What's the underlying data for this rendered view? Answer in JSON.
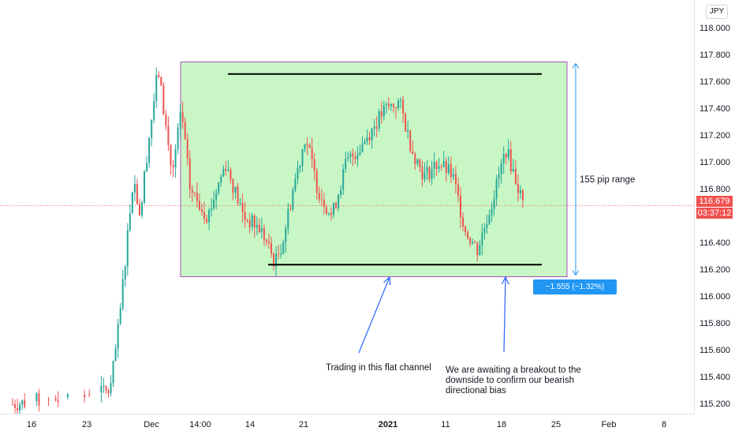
{
  "symbol": {
    "currency": "JPY"
  },
  "colors": {
    "up": "#26a69a",
    "down": "#ef5350",
    "channel_fill": "#c8f7c5",
    "channel_border": "#9c27b0",
    "line": "#000000",
    "arrow": "#2962ff",
    "measure": "#2196f3"
  },
  "price_axis": {
    "labels": [
      "118.000",
      "117.800",
      "117.600",
      "117.400",
      "117.200",
      "117.000",
      "116.800",
      "116.600",
      "116.400",
      "116.200",
      "116.000",
      "115.800",
      "115.600",
      "115.400",
      "115.200"
    ],
    "last_price": "116.679",
    "countdown": "03:37:12"
  },
  "time_axis": {
    "labels": [
      "16",
      "23",
      "Dec",
      "14:00",
      "14",
      "21",
      "2021",
      "11",
      "18",
      "25",
      "Feb",
      "8"
    ]
  },
  "annotations": {
    "range_label": "155 pip range",
    "measure_label": "−1.555 (−1.32%) −155.5",
    "note_left": "Trading in this flat channel",
    "note_right": "We are awaiting a breakout to the downside to confirm our bearish directional bias"
  },
  "chart_data": {
    "type": "candlestick",
    "currency": "JPY",
    "y_range": [
      115.1,
      118.2
    ],
    "channel": {
      "top": 117.75,
      "bottom": 116.15
    },
    "resistance_level": 117.66,
    "support_level": 116.24,
    "last_price": 116.679,
    "range_measure": {
      "change": -1.555,
      "change_pct": -1.32,
      "pips": -155.5
    },
    "series": [
      {
        "anchors_x": [
          "16",
          "23",
          "Dec",
          "14:00",
          "14",
          "21",
          "2021",
          "11",
          "18",
          "25",
          "Feb",
          "8"
        ]
      }
    ],
    "price_path": [
      [
        0,
        115.2
      ],
      [
        0.55,
        115.3
      ],
      [
        0.6,
        115.8
      ],
      [
        0.65,
        116.5
      ],
      [
        0.68,
        116.9
      ],
      [
        0.72,
        116.6
      ],
      [
        0.75,
        117.0
      ],
      [
        0.78,
        117.3
      ],
      [
        0.82,
        117.7
      ],
      [
        0.86,
        117.3
      ],
      [
        0.9,
        116.9
      ],
      [
        0.95,
        117.4
      ],
      [
        1.0,
        116.8
      ],
      [
        1.1,
        116.6
      ],
      [
        1.2,
        117.0
      ],
      [
        1.3,
        116.6
      ],
      [
        1.4,
        116.5
      ],
      [
        1.48,
        116.25
      ],
      [
        1.52,
        116.4
      ],
      [
        1.58,
        116.8
      ],
      [
        1.65,
        117.2
      ],
      [
        1.72,
        116.8
      ],
      [
        1.8,
        116.6
      ],
      [
        1.88,
        117.0
      ],
      [
        1.95,
        117.1
      ],
      [
        2.05,
        117.3
      ],
      [
        2.1,
        117.4
      ],
      [
        2.18,
        117.45
      ],
      [
        2.25,
        117.1
      ],
      [
        2.32,
        116.9
      ],
      [
        2.4,
        117.0
      ],
      [
        2.48,
        116.9
      ],
      [
        2.55,
        116.5
      ],
      [
        2.62,
        116.35
      ],
      [
        2.7,
        116.7
      ],
      [
        2.78,
        117.1
      ],
      [
        2.83,
        116.9
      ],
      [
        2.88,
        116.68
      ]
    ]
  }
}
